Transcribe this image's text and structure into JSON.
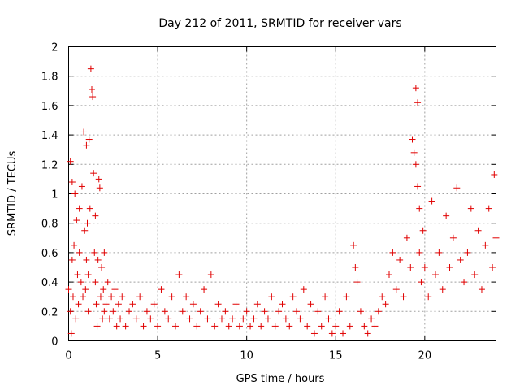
{
  "chart_data": {
    "type": "scatter",
    "title": "Day 212 of 2011, SRMTID for receiver vars",
    "xlabel": "GPS time / hours",
    "ylabel": "SRMTID / TECUs",
    "xlim": [
      0,
      24
    ],
    "ylim": [
      0,
      2
    ],
    "xticks": [
      0,
      5,
      10,
      15,
      20
    ],
    "yticks": [
      0,
      0.2,
      0.4,
      0.6,
      0.8,
      1,
      1.2,
      1.4,
      1.6,
      1.8,
      2
    ],
    "xtick_labels": [
      "0",
      "5",
      "10",
      "15",
      "20"
    ],
    "ytick_labels": [
      "0",
      "0.2",
      "0.4",
      "0.6",
      "0.8",
      "1",
      "1.2",
      "1.4",
      "1.6",
      "1.8",
      "2"
    ],
    "grid": true,
    "marker": "+",
    "marker_color": "#e00000",
    "series": [
      {
        "name": "SRMTID",
        "x": [
          0.0,
          0.1,
          0.1,
          0.15,
          0.2,
          0.2,
          0.25,
          0.3,
          0.35,
          0.4,
          0.45,
          0.5,
          0.55,
          0.6,
          0.6,
          0.7,
          0.75,
          0.8,
          0.85,
          0.9,
          0.95,
          1.0,
          1.0,
          1.05,
          1.1,
          1.1,
          1.15,
          1.2,
          1.25,
          1.3,
          1.35,
          1.4,
          1.45,
          1.5,
          1.5,
          1.55,
          1.6,
          1.65,
          1.7,
          1.75,
          1.8,
          1.85,
          1.9,
          1.95,
          2.0,
          2.0,
          2.1,
          2.2,
          2.3,
          2.4,
          2.5,
          2.6,
          2.7,
          2.8,
          2.9,
          3.0,
          3.2,
          3.4,
          3.6,
          3.8,
          4.0,
          4.2,
          4.4,
          4.6,
          4.8,
          5.0,
          5.2,
          5.4,
          5.6,
          5.8,
          6.0,
          6.2,
          6.4,
          6.6,
          6.8,
          7.0,
          7.2,
          7.4,
          7.6,
          7.8,
          8.0,
          8.2,
          8.4,
          8.6,
          8.8,
          9.0,
          9.2,
          9.4,
          9.6,
          9.8,
          10.0,
          10.2,
          10.4,
          10.6,
          10.8,
          11.0,
          11.2,
          11.4,
          11.6,
          11.8,
          12.0,
          12.2,
          12.4,
          12.6,
          12.8,
          13.0,
          13.2,
          13.4,
          13.6,
          13.8,
          14.0,
          14.2,
          14.4,
          14.6,
          14.8,
          15.0,
          15.2,
          15.4,
          15.6,
          15.8,
          16.0,
          16.1,
          16.2,
          16.4,
          16.6,
          16.8,
          17.0,
          17.2,
          17.4,
          17.6,
          17.8,
          18.0,
          18.2,
          18.4,
          18.6,
          18.8,
          19.0,
          19.2,
          19.3,
          19.4,
          19.5,
          19.5,
          19.6,
          19.6,
          19.7,
          19.7,
          19.8,
          19.9,
          20.0,
          20.2,
          20.4,
          20.6,
          20.8,
          21.0,
          21.2,
          21.4,
          21.6,
          21.8,
          22.0,
          22.2,
          22.4,
          22.6,
          22.8,
          23.0,
          23.2,
          23.4,
          23.6,
          23.8,
          23.9,
          24.0
        ],
        "y": [
          0.35,
          1.22,
          0.2,
          0.05,
          1.08,
          0.55,
          0.3,
          0.65,
          1.0,
          0.15,
          0.82,
          0.45,
          0.25,
          0.6,
          0.9,
          0.4,
          1.05,
          0.3,
          1.42,
          0.75,
          0.35,
          1.33,
          0.55,
          0.8,
          0.2,
          0.45,
          1.37,
          0.9,
          1.85,
          1.71,
          1.66,
          1.14,
          0.6,
          0.85,
          0.4,
          0.25,
          0.1,
          0.55,
          1.1,
          1.04,
          0.3,
          0.5,
          0.15,
          0.35,
          0.6,
          0.2,
          0.25,
          0.4,
          0.15,
          0.3,
          0.2,
          0.35,
          0.1,
          0.25,
          0.15,
          0.3,
          0.1,
          0.2,
          0.25,
          0.15,
          0.3,
          0.1,
          0.2,
          0.15,
          0.25,
          0.1,
          0.35,
          0.2,
          0.15,
          0.3,
          0.1,
          0.45,
          0.2,
          0.3,
          0.15,
          0.25,
          0.1,
          0.2,
          0.35,
          0.15,
          0.45,
          0.1,
          0.25,
          0.15,
          0.2,
          0.1,
          0.15,
          0.25,
          0.1,
          0.15,
          0.2,
          0.1,
          0.15,
          0.25,
          0.1,
          0.2,
          0.15,
          0.3,
          0.1,
          0.2,
          0.25,
          0.15,
          0.1,
          0.3,
          0.2,
          0.15,
          0.35,
          0.1,
          0.25,
          0.05,
          0.2,
          0.1,
          0.3,
          0.15,
          0.05,
          0.1,
          0.2,
          0.05,
          0.3,
          0.1,
          0.65,
          0.5,
          0.4,
          0.2,
          0.1,
          0.05,
          0.15,
          0.1,
          0.2,
          0.3,
          0.25,
          0.45,
          0.6,
          0.35,
          0.55,
          0.3,
          0.7,
          0.5,
          1.37,
          1.28,
          1.2,
          1.72,
          1.62,
          1.05,
          0.9,
          0.6,
          0.4,
          0.75,
          0.5,
          0.3,
          0.95,
          0.45,
          0.6,
          0.35,
          0.85,
          0.5,
          0.7,
          1.04,
          0.55,
          0.4,
          0.6,
          0.9,
          0.45,
          0.75,
          0.35,
          0.65,
          0.9,
          0.5,
          1.13,
          0.7
        ]
      }
    ]
  }
}
